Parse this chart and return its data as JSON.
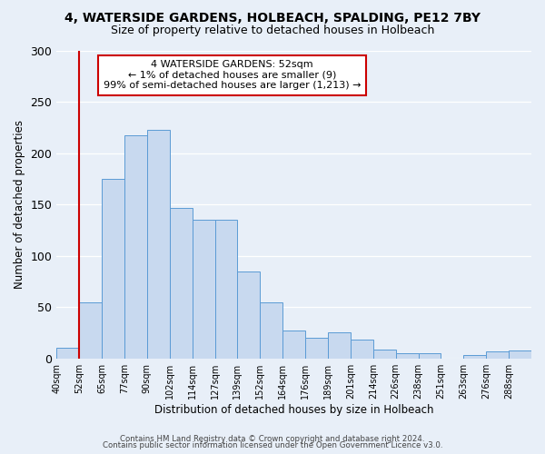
{
  "title": "4, WATERSIDE GARDENS, HOLBEACH, SPALDING, PE12 7BY",
  "subtitle": "Size of property relative to detached houses in Holbeach",
  "xlabel": "Distribution of detached houses by size in Holbeach",
  "ylabel": "Number of detached properties",
  "bar_heights": [
    10,
    55,
    175,
    218,
    223,
    147,
    135,
    135,
    85,
    55,
    27,
    20,
    25,
    18,
    9,
    5,
    5,
    0,
    3,
    7,
    8
  ],
  "bin_labels": [
    "40sqm",
    "52sqm",
    "65sqm",
    "77sqm",
    "90sqm",
    "102sqm",
    "114sqm",
    "127sqm",
    "139sqm",
    "152sqm",
    "164sqm",
    "176sqm",
    "189sqm",
    "201sqm",
    "214sqm",
    "226sqm",
    "238sqm",
    "251sqm",
    "263sqm",
    "276sqm",
    "288sqm"
  ],
  "bar_color": "#c8d9ef",
  "bar_edge_color": "#5b9bd5",
  "vline_x": 1,
  "vline_color": "#cc0000",
  "annotation_lines": [
    "4 WATERSIDE GARDENS: 52sqm",
    "← 1% of detached houses are smaller (9)",
    "99% of semi-detached houses are larger (1,213) →"
  ],
  "ylim": [
    0,
    300
  ],
  "yticks": [
    0,
    50,
    100,
    150,
    200,
    250,
    300
  ],
  "footer1": "Contains HM Land Registry data © Crown copyright and database right 2024.",
  "footer2": "Contains public sector information licensed under the Open Government Licence v3.0.",
  "bg_color": "#e8eff8",
  "plot_bg_color": "#e8eff8"
}
